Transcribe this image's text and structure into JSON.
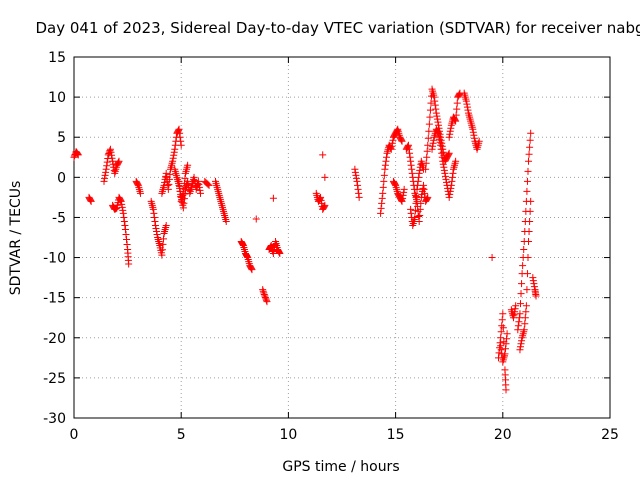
{
  "chart_data": {
    "type": "scatter",
    "title": "Day 041 of 2023, Sidereal Day-to-day VTEC variation (SDTVAR) for receiver nabg",
    "xlabel": "GPS time / hours",
    "ylabel": "SDTVAR / TECUs",
    "xlim": [
      0,
      25
    ],
    "ylim": [
      -30,
      15
    ],
    "xticks": [
      0,
      5,
      10,
      15,
      20,
      25
    ],
    "yticks": [
      15,
      10,
      5,
      0,
      -5,
      -10,
      -15,
      -20,
      -25,
      -30
    ],
    "x_tick_labels": [
      "0",
      "5",
      "10",
      "15",
      "20",
      "25"
    ],
    "y_tick_labels": [
      "15",
      "10",
      "5",
      "0",
      "-5",
      "-10",
      "-15",
      "-20",
      "-25",
      "-30"
    ],
    "grid": true,
    "marker": "+",
    "color": "#ff0000",
    "series": [
      {
        "name": "SDTVAR",
        "segments": [
          {
            "x": [
              0.0,
              0.1,
              0.2
            ],
            "y": [
              2.5,
              3.2,
              2.8
            ]
          },
          {
            "x": [
              0.7,
              0.8
            ],
            "y": [
              -2.5,
              -3.0
            ]
          },
          {
            "x": [
              1.4,
              1.5,
              1.6,
              1.7,
              1.8,
              1.9,
              2.0,
              2.1
            ],
            "y": [
              -0.5,
              1.0,
              2.8,
              3.5,
              2.0,
              0.5,
              1.5,
              2.0
            ]
          },
          {
            "x": [
              1.8,
              1.9,
              2.0,
              2.1,
              2.2,
              2.3,
              2.4,
              2.5,
              2.55
            ],
            "y": [
              -3.5,
              -4.0,
              -3.8,
              -2.5,
              -3.0,
              -4.5,
              -6.5,
              -9.0,
              -10.8
            ]
          },
          {
            "x": [
              2.9,
              3.0,
              3.1
            ],
            "y": [
              -0.5,
              -1.0,
              -2.0
            ]
          },
          {
            "x": [
              3.6,
              3.7,
              3.8,
              3.9,
              4.0,
              4.1,
              4.2,
              4.3
            ],
            "y": [
              -3.0,
              -4.0,
              -6.0,
              -7.5,
              -8.5,
              -9.7,
              -7.0,
              -6.0
            ]
          },
          {
            "x": [
              4.1,
              4.2,
              4.3,
              4.4,
              4.5,
              4.6,
              4.7,
              4.8,
              4.9,
              5.0
            ],
            "y": [
              -2.0,
              -1.0,
              0.5,
              -1.5,
              1.0,
              2.0,
              3.5,
              5.5,
              6.0,
              4.0
            ]
          },
          {
            "x": [
              4.7,
              4.8,
              4.9,
              5.0,
              5.1,
              5.2,
              5.3,
              5.4,
              5.5,
              5.6,
              5.7,
              5.8,
              5.9
            ],
            "y": [
              1.0,
              0.0,
              -1.0,
              -2.5,
              -3.8,
              -1.5,
              -0.5,
              -2.0,
              -1.0,
              0.0,
              -1.5,
              -0.5,
              -2.0
            ]
          },
          {
            "x": [
              4.9,
              5.0,
              5.1,
              5.2,
              5.3
            ],
            "y": [
              -0.5,
              -3.0,
              -2.0,
              0.5,
              1.5
            ]
          },
          {
            "x": [
              6.1,
              6.3
            ],
            "y": [
              -0.5,
              -1.0
            ]
          },
          {
            "x": [
              6.6,
              6.7,
              6.8,
              6.9,
              7.0,
              7.1
            ],
            "y": [
              -0.5,
              -1.5,
              -2.5,
              -3.5,
              -4.5,
              -5.5
            ]
          },
          {
            "x": [
              7.8,
              7.9,
              8.0,
              8.1,
              8.2,
              8.3
            ],
            "y": [
              -8.0,
              -8.5,
              -9.5,
              -10.0,
              -11.0,
              -11.5
            ]
          },
          {
            "x": [
              8.5
            ],
            "y": [
              -5.2
            ]
          },
          {
            "x": [
              8.8,
              8.9,
              9.0
            ],
            "y": [
              -14.0,
              -14.8,
              -15.5
            ]
          },
          {
            "x": [
              9.1,
              9.2,
              9.3,
              9.4,
              9.5,
              9.6
            ],
            "y": [
              -9.0,
              -8.5,
              -9.5,
              -8.0,
              -9.0,
              -9.5
            ]
          },
          {
            "x": [
              9.3
            ],
            "y": [
              -2.6
            ]
          },
          {
            "x": [
              11.3,
              11.4,
              11.5,
              11.6,
              11.7
            ],
            "y": [
              -2.0,
              -3.0,
              -2.5,
              -4.0,
              -3.5
            ]
          },
          {
            "x": [
              11.6
            ],
            "y": [
              2.8
            ]
          },
          {
            "x": [
              11.7
            ],
            "y": [
              0.0
            ]
          },
          {
            "x": [
              13.1,
              13.2,
              13.3
            ],
            "y": [
              1.0,
              -0.5,
              -2.5
            ]
          },
          {
            "x": [
              14.3,
              14.4,
              14.5,
              14.6,
              14.7,
              14.8,
              14.9,
              15.0,
              15.1,
              15.2,
              15.3
            ],
            "y": [
              -4.5,
              -2.0,
              1.0,
              3.0,
              4.0,
              3.5,
              5.0,
              5.5,
              6.0,
              5.0,
              4.5
            ]
          },
          {
            "x": [
              14.9,
              15.0,
              15.1,
              15.2,
              15.3,
              15.4
            ],
            "y": [
              -0.5,
              -1.0,
              -2.0,
              -2.5,
              -3.0,
              -1.5
            ]
          },
          {
            "x": [
              15.5,
              15.6,
              15.7,
              15.8,
              15.9,
              16.0,
              16.1,
              16.2,
              16.3,
              16.4,
              16.5
            ],
            "y": [
              3.5,
              4.0,
              2.0,
              0.0,
              -2.0,
              -3.0,
              -5.5,
              -2.5,
              -1.0,
              -3.0,
              -2.5
            ]
          },
          {
            "x": [
              15.7,
              15.8,
              15.9,
              16.0,
              16.1,
              16.2,
              16.3
            ],
            "y": [
              -4.0,
              -6.0,
              -5.0,
              -1.5,
              0.5,
              2.0,
              1.0
            ]
          },
          {
            "x": [
              16.4,
              16.5,
              16.6,
              16.7,
              16.8,
              16.9,
              17.0,
              17.1,
              17.2,
              17.3,
              17.4,
              17.5
            ],
            "y": [
              1.0,
              4.0,
              7.5,
              11.0,
              10.0,
              8.0,
              6.5,
              5.0,
              3.5,
              2.0,
              2.5,
              3.0
            ]
          },
          {
            "x": [
              16.7,
              16.8,
              16.9,
              17.0,
              17.1,
              17.2,
              17.3,
              17.4,
              17.5,
              17.6,
              17.7,
              17.8
            ],
            "y": [
              3.5,
              5.0,
              6.0,
              5.5,
              4.0,
              2.0,
              0.5,
              -1.0,
              -2.5,
              -1.0,
              1.0,
              2.0
            ]
          },
          {
            "x": [
              17.5,
              17.6,
              17.7,
              17.8,
              17.9,
              18.0
            ],
            "y": [
              5.0,
              6.5,
              7.5,
              7.0,
              10.0,
              10.5
            ]
          },
          {
            "x": [
              18.2,
              18.3,
              18.4,
              18.5,
              18.6,
              18.7,
              18.8,
              18.9
            ],
            "y": [
              10.5,
              9.5,
              8.0,
              7.0,
              6.0,
              4.5,
              3.5,
              4.5
            ]
          },
          {
            "x": [
              19.5
            ],
            "y": [
              -10.0
            ]
          },
          {
            "x": [
              19.8,
              19.9,
              20.0,
              20.1,
              20.15
            ],
            "y": [
              -22.5,
              -20.0,
              -17.0,
              -24.0,
              -26.5
            ]
          },
          {
            "x": [
              19.9,
              20.0,
              20.1,
              20.2
            ],
            "y": [
              -21.0,
              -23.0,
              -22.0,
              -19.5
            ]
          },
          {
            "x": [
              20.4,
              20.5,
              20.6
            ],
            "y": [
              -16.5,
              -17.5,
              -16.0
            ]
          },
          {
            "x": [
              20.7,
              20.8,
              20.9,
              21.0,
              21.1,
              21.2,
              21.3
            ],
            "y": [
              -19.0,
              -17.0,
              -12.0,
              -8.0,
              -3.0,
              2.0,
              5.5
            ]
          },
          {
            "x": [
              20.8,
              20.9,
              21.0,
              21.1,
              21.2,
              21.3
            ],
            "y": [
              -21.5,
              -20.0,
              -19.0,
              -16.0,
              -8.0,
              -3.0
            ]
          },
          {
            "x": [
              21.4,
              21.5,
              21.55
            ],
            "y": [
              -12.5,
              -14.0,
              -14.8
            ]
          }
        ]
      }
    ]
  }
}
